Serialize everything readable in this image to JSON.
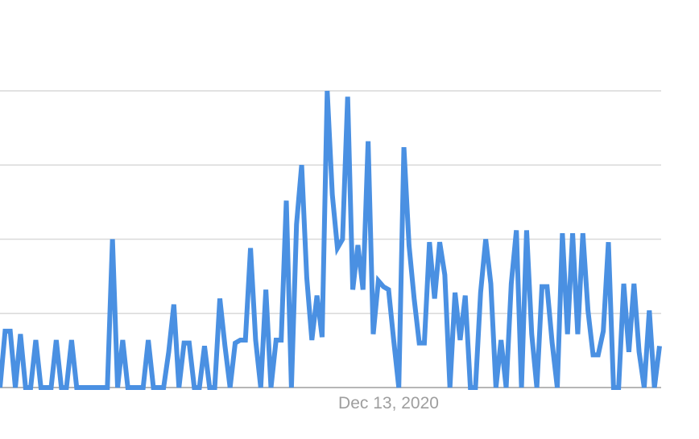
{
  "chart_data": {
    "type": "line",
    "title": "",
    "xlabel": "",
    "ylabel": "",
    "ylim": [
      0,
      100
    ],
    "yticks": [
      0,
      25,
      50,
      75,
      100
    ],
    "y_tick_labels_shown": false,
    "grid": true,
    "legend": "none",
    "x_tick_labels": [
      "Dec 13, 2020"
    ],
    "x_tick_index": 76,
    "series": [
      {
        "color": "#4a90e2",
        "values": [
          0,
          19,
          19,
          0,
          18,
          0,
          0,
          16,
          0,
          0,
          0,
          16,
          0,
          0,
          16,
          0,
          0,
          0,
          0,
          0,
          0,
          0,
          50,
          0,
          16,
          0,
          0,
          0,
          0,
          16,
          0,
          0,
          0,
          12,
          28,
          0,
          15,
          15,
          0,
          0,
          14,
          0,
          0,
          30,
          14,
          0,
          15,
          16,
          16,
          47,
          16,
          0,
          33,
          0,
          16,
          16,
          63,
          0,
          55,
          75,
          37,
          16,
          31,
          17,
          100,
          65,
          47,
          50,
          98,
          33,
          48,
          33,
          83,
          18,
          36,
          34,
          33,
          16,
          0,
          81,
          48,
          30,
          15,
          15,
          49,
          30,
          49,
          38,
          0,
          32,
          16,
          31,
          0,
          0,
          32,
          50,
          35,
          0,
          16,
          0,
          35,
          53,
          0,
          53,
          18,
          0,
          34,
          34,
          15,
          0,
          52,
          18,
          52,
          18,
          52,
          26,
          11,
          11,
          19,
          49,
          0,
          0,
          35,
          12,
          35,
          12,
          0,
          26,
          0,
          14
        ]
      }
    ]
  }
}
